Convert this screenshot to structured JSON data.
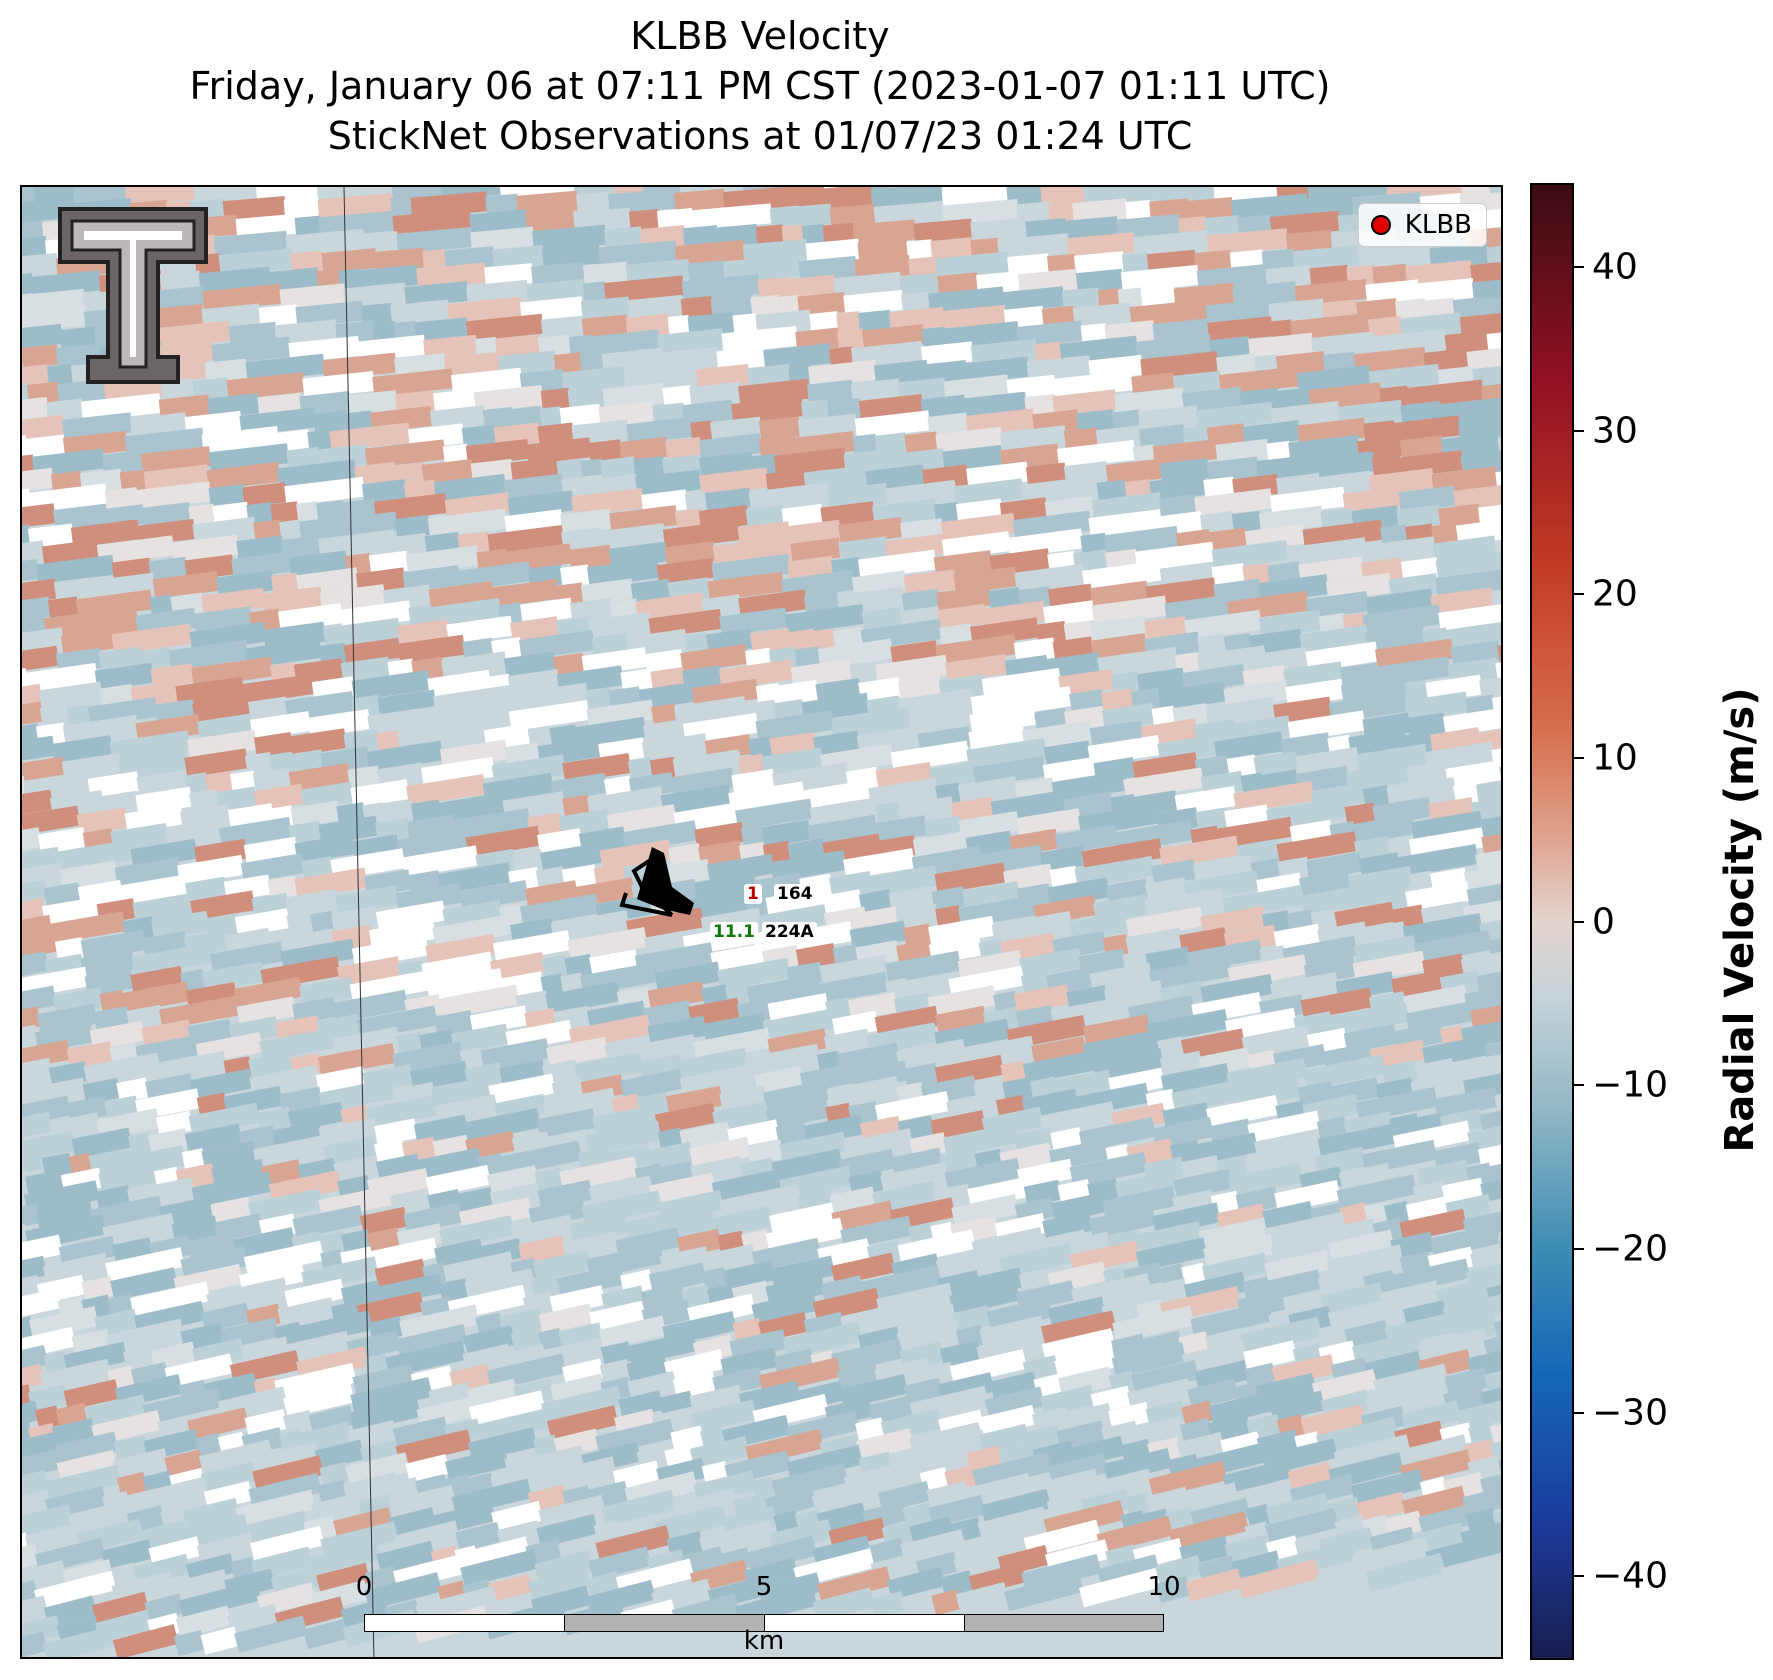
{
  "header": {
    "title_line1": "KLBB Velocity",
    "title_line2": "Friday, January 06 at 07:11 PM CST (2023-01-07 01:11 UTC)",
    "title_line3": "StickNet Observations at 01/07/23 01:24 UTC"
  },
  "legend": {
    "label": "KLBB",
    "marker_color": "#e00000"
  },
  "scale_bar": {
    "labels": [
      "0",
      "5",
      "10"
    ],
    "unit": "km"
  },
  "stations": [
    {
      "id": "164",
      "value": "1",
      "value_color": "#c00000"
    },
    {
      "id": "224A",
      "value": "11.1",
      "value_color": "#0a7a0a"
    }
  ],
  "colorbar": {
    "label": "Radial Velocity (m/s)",
    "min": -45,
    "max": 45,
    "ticks": [
      "40",
      "30",
      "20",
      "10",
      "0",
      "−10",
      "−20",
      "−30",
      "−40"
    ],
    "tick_values": [
      40,
      30,
      20,
      10,
      0,
      -10,
      -20,
      -30,
      -40
    ]
  },
  "logo": {
    "name": "texas-tech-double-t-logo"
  }
}
